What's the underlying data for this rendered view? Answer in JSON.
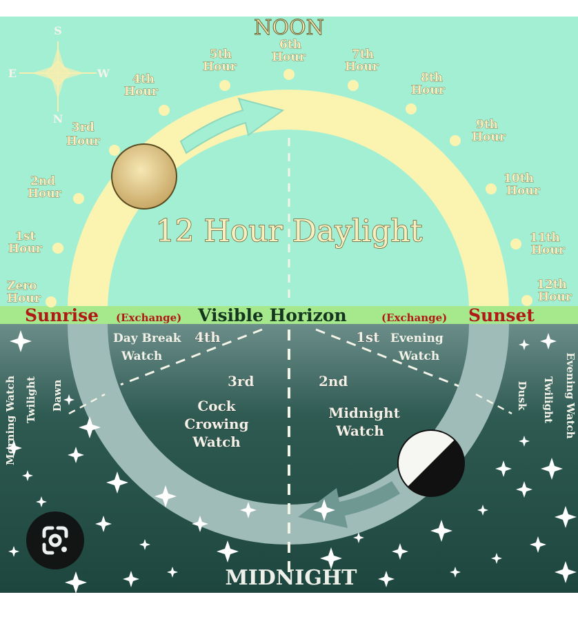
{
  "title": "12 Hour Daylight",
  "noon": "NOON",
  "midnight": "MIDNIGHT",
  "horizon": {
    "sunrise": "Sunrise",
    "exchange_left": "(Exchange)",
    "visible_horizon": "Visible Horizon",
    "exchange_right": "(Exchange)",
    "sunset": "Sunset"
  },
  "compass": {
    "s": "S",
    "e": "E",
    "w": "W",
    "n": "N"
  },
  "hours": {
    "zero": [
      "Zero",
      "Hour"
    ],
    "first": [
      "1st",
      "Hour"
    ],
    "second": [
      "2nd",
      "Hour"
    ],
    "third": [
      "3rd",
      "Hour"
    ],
    "fourth": [
      "4th",
      "Hour"
    ],
    "fifth": [
      "5th",
      "Hour"
    ],
    "sixth": [
      "6th",
      "Hour"
    ],
    "seventh": [
      "7th",
      "Hour"
    ],
    "eighth": [
      "8th",
      "Hour"
    ],
    "ninth": [
      "9th",
      "Hour"
    ],
    "tenth": [
      "10th",
      "Hour"
    ],
    "eleventh": [
      "11th",
      "Hour"
    ],
    "twelfth": [
      "12th",
      "Hour"
    ]
  },
  "watches": {
    "fourth": {
      "ordinal": "4th",
      "lines": [
        "Day Break",
        "Watch"
      ]
    },
    "third": {
      "ordinal": "3rd",
      "lines": [
        "Cock",
        "Crowing",
        "Watch"
      ]
    },
    "second": {
      "ordinal": "2nd",
      "lines": [
        "Midnight",
        "Watch"
      ]
    },
    "first": {
      "ordinal": "1st",
      "lines": [
        "Evening",
        "Watch"
      ]
    }
  },
  "side_labels": {
    "morning_watch": "Morning Watch",
    "twilight_left": "Twilight",
    "dawn": "Dawn",
    "dusk": "Dusk",
    "twilight_right": "Twilight",
    "evening_watch": "Evening Watch"
  },
  "colors": {
    "sky": "#a3efd4",
    "night": "#1f4a42",
    "horizon_band": "#a6e88c",
    "horizon_red": "#b01a16",
    "arc_day": "#fbf4b0",
    "arc_night": "#9fbcb8"
  },
  "icons": {
    "lens": "google-lens-icon"
  }
}
